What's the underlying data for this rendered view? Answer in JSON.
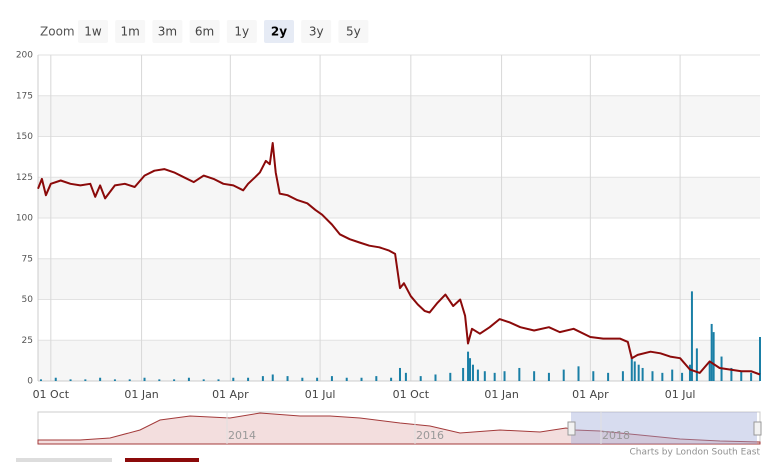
{
  "range_selector": {
    "label": "Zoom",
    "buttons": [
      "1w",
      "1m",
      "3m",
      "6m",
      "1y",
      "2y",
      "3y",
      "5y"
    ],
    "selected": 5
  },
  "chart_data": {
    "type": "line",
    "xlim": [
      -13,
      719
    ],
    "xticks": [
      {
        "value": 0,
        "label": "01 Oct"
      },
      {
        "value": 92,
        "label": "01 Jan"
      },
      {
        "value": 182,
        "label": "01 Apr"
      },
      {
        "value": 273,
        "label": "01 Jul"
      },
      {
        "value": 365,
        "label": "01 Oct"
      },
      {
        "value": 457,
        "label": "01 Jan"
      },
      {
        "value": 547,
        "label": "01 Apr"
      },
      {
        "value": 638,
        "label": "01 Jul"
      }
    ],
    "ylim": [
      0,
      200
    ],
    "yticks": [
      0,
      25,
      50,
      75,
      100,
      125,
      150,
      175,
      200
    ],
    "grid": true,
    "series": [
      {
        "type": "line",
        "color": "#8b0a0a",
        "x": [
          -13,
          -9,
          -5,
          0,
          10,
          20,
          30,
          40,
          45,
          50,
          55,
          65,
          75,
          85,
          95,
          105,
          115,
          125,
          135,
          145,
          155,
          165,
          175,
          185,
          195,
          200,
          207,
          212,
          218,
          222,
          225,
          228,
          232,
          240,
          250,
          260,
          268,
          275,
          285,
          293,
          303,
          313,
          323,
          333,
          343,
          349,
          354,
          358,
          365,
          372,
          379,
          384,
          392,
          400,
          408,
          415,
          420,
          423,
          427,
          435,
          445,
          455,
          465,
          476,
          490,
          505,
          516,
          530,
          547,
          560,
          577,
          585,
          589,
          595,
          608,
          618,
          628,
          638,
          648,
          658,
          668,
          678,
          689,
          700,
          710,
          719
        ],
        "values": [
          118,
          124,
          114,
          121,
          123,
          121,
          120,
          121,
          113,
          120,
          112,
          120,
          121,
          119,
          126,
          129,
          130,
          128,
          125,
          122,
          126,
          124,
          121,
          120,
          117,
          121,
          125,
          128,
          135,
          133,
          146,
          128,
          115,
          114,
          111,
          109,
          105,
          102,
          96,
          90,
          87,
          85,
          83,
          82,
          80,
          78,
          57,
          60,
          52,
          47,
          43,
          42,
          48,
          53,
          46,
          50,
          40,
          23,
          32,
          29,
          33,
          38,
          36,
          33,
          31,
          33,
          30,
          32,
          27,
          26,
          26,
          24,
          14,
          16,
          18,
          17,
          15,
          14,
          7,
          5,
          12,
          8,
          7,
          6,
          6,
          4
        ]
      },
      {
        "type": "column",
        "color": "#1a7fa6",
        "x": [
          -10,
          5,
          20,
          35,
          50,
          65,
          80,
          95,
          110,
          125,
          140,
          155,
          170,
          185,
          200,
          215,
          225,
          240,
          255,
          270,
          285,
          300,
          315,
          330,
          345,
          354,
          360,
          375,
          390,
          405,
          418,
          423,
          425,
          428,
          433,
          440,
          450,
          460,
          475,
          490,
          505,
          520,
          535,
          550,
          565,
          580,
          589,
          592,
          596,
          600,
          610,
          620,
          630,
          640,
          648,
          650,
          655,
          668,
          670,
          672,
          680,
          690,
          700,
          710,
          719
        ],
        "values": [
          1,
          2,
          1,
          1,
          2,
          1,
          1,
          2,
          1,
          1,
          2,
          1,
          1,
          2,
          2,
          3,
          4,
          3,
          2,
          2,
          3,
          2,
          2,
          3,
          2,
          8,
          5,
          3,
          4,
          5,
          8,
          18,
          14,
          10,
          7,
          6,
          5,
          6,
          8,
          6,
          5,
          7,
          9,
          6,
          5,
          6,
          15,
          12,
          10,
          8,
          6,
          5,
          7,
          5,
          10,
          55,
          20,
          12,
          35,
          30,
          15,
          8,
          6,
          5,
          27
        ]
      }
    ]
  },
  "navigator": {
    "labels": [
      "2014",
      "2016",
      "2018"
    ]
  },
  "credits": "Charts by London South East"
}
